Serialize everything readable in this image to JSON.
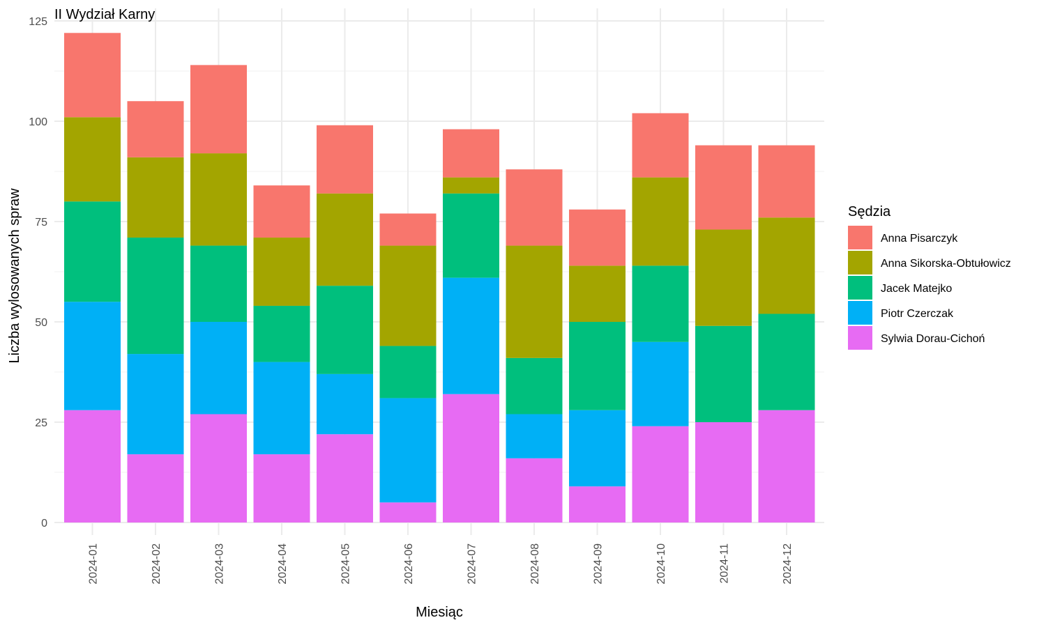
{
  "chart_data": {
    "type": "bar",
    "stacked": true,
    "title": "II Wydział Karny",
    "xlabel": "Miesiąc",
    "ylabel": "Liczba wylosowanych spraw",
    "ylim": [
      0,
      125
    ],
    "yticks": [
      0,
      25,
      50,
      75,
      100,
      125
    ],
    "grid": true,
    "legend_position": "right",
    "legend_title": "Sędzia",
    "categories": [
      "2024-01",
      "2024-02",
      "2024-03",
      "2024-04",
      "2024-05",
      "2024-06",
      "2024-07",
      "2024-08",
      "2024-09",
      "2024-10",
      "2024-11",
      "2024-12"
    ],
    "series": [
      {
        "name": "Sylwia Dorau-Cichoń",
        "color": "#E76BF3",
        "values": [
          28,
          17,
          27,
          17,
          22,
          5,
          32,
          16,
          9,
          24,
          25,
          28
        ]
      },
      {
        "name": "Piotr Czerczak",
        "color": "#00B0F6",
        "values": [
          27,
          25,
          23,
          23,
          15,
          26,
          29,
          11,
          19,
          21,
          0,
          0
        ]
      },
      {
        "name": "Jacek Matejko",
        "color": "#00BF7D",
        "values": [
          25,
          29,
          19,
          14,
          22,
          13,
          21,
          14,
          22,
          19,
          24,
          24
        ]
      },
      {
        "name": "Anna Sikorska-Obtułowicz",
        "color": "#A3A500",
        "values": [
          21,
          20,
          23,
          17,
          23,
          25,
          4,
          28,
          14,
          22,
          24,
          24
        ]
      },
      {
        "name": "Anna Pisarczyk",
        "color": "#F8766D",
        "values": [
          21,
          14,
          22,
          13,
          17,
          8,
          12,
          19,
          14,
          16,
          21,
          18
        ]
      }
    ],
    "legend_order": [
      "Anna Pisarczyk",
      "Anna Sikorska-Obtułowicz",
      "Jacek Matejko",
      "Piotr Czerczak",
      "Sylwia Dorau-Cichoń"
    ]
  }
}
